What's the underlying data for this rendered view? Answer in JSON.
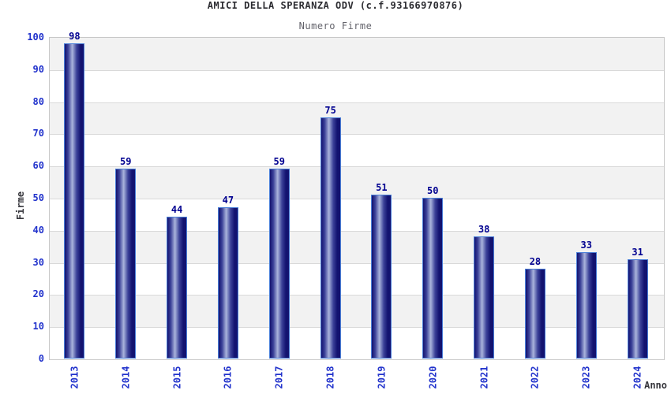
{
  "header": {
    "title": "AMICI DELLA SPERANZA ODV (c.f.93166970876)",
    "subtitle": "Numero Firme"
  },
  "chart_data": {
    "type": "bar",
    "title": "AMICI DELLA SPERANZA ODV (c.f.93166970876)",
    "subtitle": "Numero Firme",
    "categories": [
      "2013",
      "2014",
      "2015",
      "2016",
      "2017",
      "2018",
      "2019",
      "2020",
      "2021",
      "2022",
      "2023",
      "2024"
    ],
    "values": [
      98,
      59,
      44,
      47,
      59,
      75,
      51,
      50,
      38,
      28,
      33,
      31
    ],
    "xlabel": "Anno",
    "ylabel": "Firme",
    "ylim": [
      0,
      100
    ],
    "ytick_step": 10,
    "grid": true,
    "legend": "none",
    "colors": {
      "bar_dark": "#131370",
      "bar_mid_shade": "#3c4299",
      "bar_light": "#aab4dc",
      "bar_border": "#4a7fd8",
      "value_label": "#000090",
      "tick_label": "#2233cc",
      "axis_title": "#36363c",
      "band_gray": "#f2f2f2",
      "band_white": "#ffffff",
      "grid_line": "#d9d9d9",
      "plot_border": "#c8c8c8",
      "title_color": "#2b2b30",
      "subtitle_color": "#63636b"
    }
  }
}
